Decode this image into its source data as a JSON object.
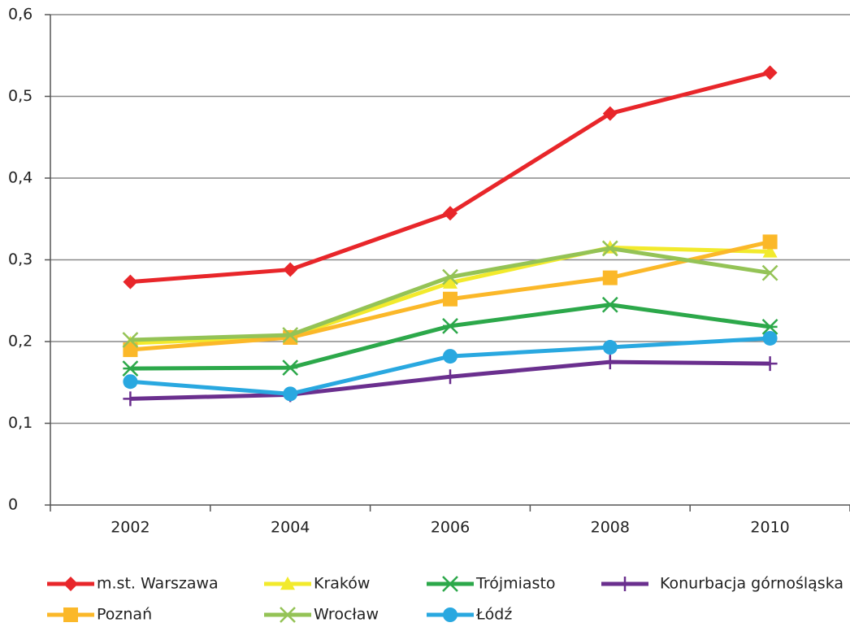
{
  "chart_data": {
    "type": "line",
    "categories": [
      "2002",
      "2004",
      "2006",
      "2008",
      "2010"
    ],
    "ylim": [
      0,
      0.6
    ],
    "yticks": [
      0,
      {
        "value": 0.1,
        "label": "0,1"
      },
      {
        "value": 0.2,
        "label": "0,2"
      },
      {
        "value": 0.3,
        "label": "0,3"
      },
      {
        "value": 0.4,
        "label": "0,4"
      },
      {
        "value": 0.5,
        "label": "0,5"
      },
      {
        "value": 0.6,
        "label": "0,6"
      }
    ],
    "grid": true,
    "legend": "bottom",
    "series": [
      {
        "name": "m.st. Warszawa",
        "color": "#e8262a",
        "marker": "diamond",
        "values": [
          0.273,
          0.288,
          0.357,
          0.479,
          0.529
        ]
      },
      {
        "name": "Kraków",
        "color": "#f2ea2c",
        "marker": "triangle",
        "values": [
          0.198,
          0.206,
          0.272,
          0.315,
          0.31
        ]
      },
      {
        "name": "Trójmiasto",
        "color": "#2ca84a",
        "marker": "star",
        "values": [
          0.167,
          0.168,
          0.219,
          0.245,
          0.218
        ]
      },
      {
        "name": "Konurbacja górnośląska",
        "color": "#6a2f8e",
        "marker": "plus",
        "values": [
          0.13,
          0.135,
          0.157,
          0.175,
          0.173
        ]
      },
      {
        "name": "Poznań",
        "color": "#fbb829",
        "marker": "square",
        "values": [
          0.19,
          0.205,
          0.252,
          0.278,
          0.322
        ]
      },
      {
        "name": "Wrocław",
        "color": "#94c356",
        "marker": "x",
        "values": [
          0.202,
          0.208,
          0.279,
          0.314,
          0.284
        ]
      },
      {
        "name": "Łódź",
        "color": "#29a8e0",
        "marker": "circle",
        "values": [
          0.151,
          0.136,
          0.182,
          0.193,
          0.204
        ]
      }
    ]
  }
}
